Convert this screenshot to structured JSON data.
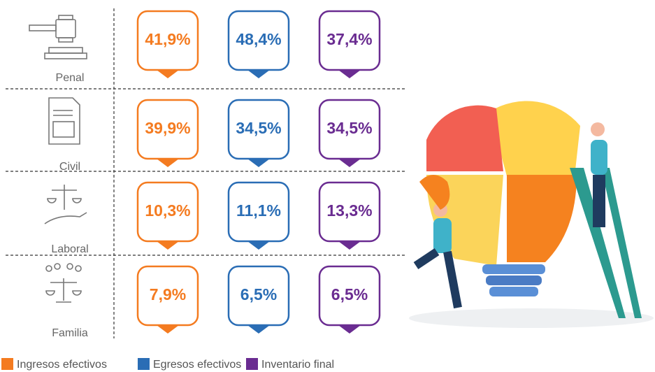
{
  "rows": [
    {
      "label": "Penal",
      "values": [
        "41,9%",
        "48,4%",
        "37,4%"
      ]
    },
    {
      "label": "Civil",
      "values": [
        "39,9%",
        "34,5%",
        "34,5%"
      ]
    },
    {
      "label": "Laboral",
      "values": [
        "10,3%",
        "11,1%",
        "13,3%"
      ]
    },
    {
      "label": "Familia",
      "values": [
        "7,9%",
        "6,5%",
        "6,5%"
      ]
    }
  ],
  "legend": [
    {
      "name": "Ingresos efectivos",
      "color": "#f47b20"
    },
    {
      "name": "Egresos efectivos",
      "color": "#2a6db5"
    },
    {
      "name": "Inventario final",
      "color": "#6a2c91"
    }
  ]
}
